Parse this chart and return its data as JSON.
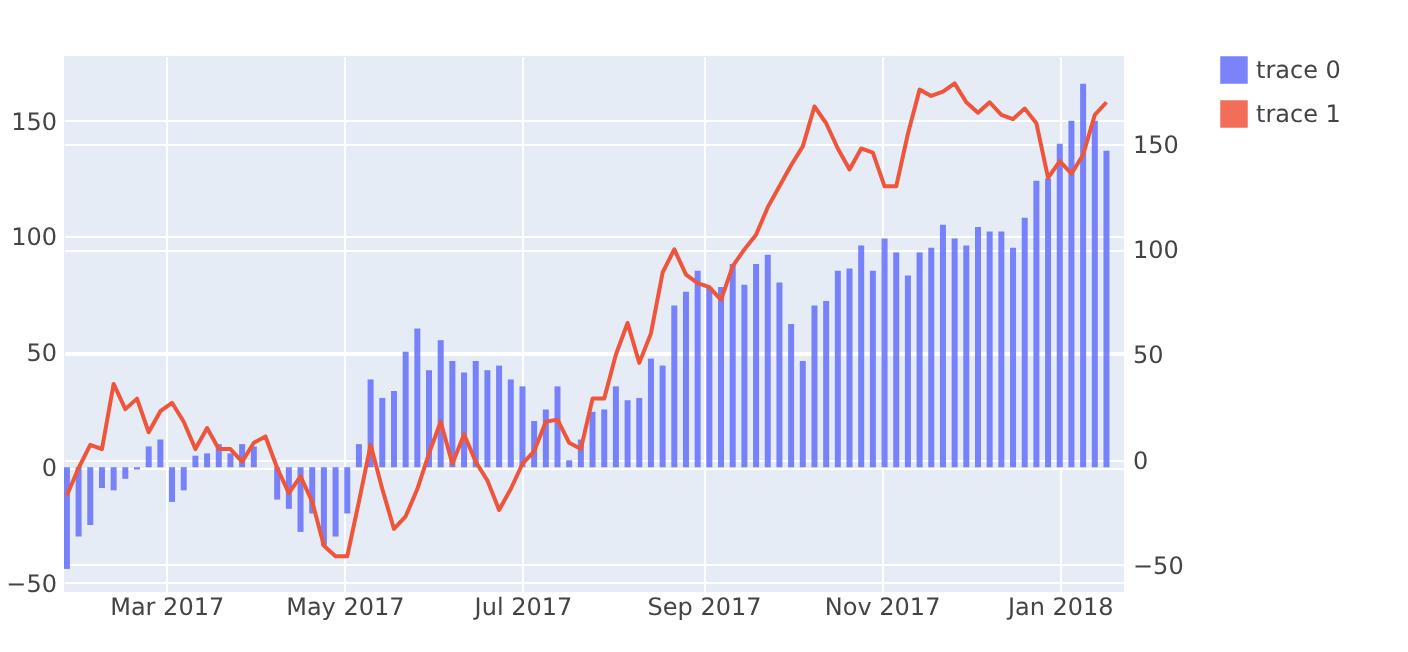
{
  "chart_data": {
    "type": "bar",
    "x": [
      "2017-01-26",
      "2017-01-30",
      "2017-02-03",
      "2017-02-07",
      "2017-02-11",
      "2017-02-15",
      "2017-02-19",
      "2017-02-23",
      "2017-02-27",
      "2017-03-03",
      "2017-03-07",
      "2017-03-11",
      "2017-03-15",
      "2017-03-19",
      "2017-03-23",
      "2017-03-27",
      "2017-03-31",
      "2017-04-04",
      "2017-04-08",
      "2017-04-12",
      "2017-04-16",
      "2017-04-20",
      "2017-04-24",
      "2017-04-28",
      "2017-05-02",
      "2017-05-06",
      "2017-05-10",
      "2017-05-14",
      "2017-05-18",
      "2017-05-22",
      "2017-05-26",
      "2017-05-30",
      "2017-06-03",
      "2017-06-07",
      "2017-06-11",
      "2017-06-15",
      "2017-06-19",
      "2017-06-23",
      "2017-06-27",
      "2017-07-01",
      "2017-07-05",
      "2017-07-09",
      "2017-07-13",
      "2017-07-17",
      "2017-07-21",
      "2017-07-25",
      "2017-07-29",
      "2017-08-02",
      "2017-08-06",
      "2017-08-10",
      "2017-08-14",
      "2017-08-18",
      "2017-08-22",
      "2017-08-26",
      "2017-08-30",
      "2017-09-03",
      "2017-09-07",
      "2017-09-11",
      "2017-09-15",
      "2017-09-19",
      "2017-09-23",
      "2017-09-27",
      "2017-10-01",
      "2017-10-05",
      "2017-10-09",
      "2017-10-13",
      "2017-10-17",
      "2017-10-21",
      "2017-10-25",
      "2017-10-29",
      "2017-11-02",
      "2017-11-06",
      "2017-11-10",
      "2017-11-14",
      "2017-11-18",
      "2017-11-22",
      "2017-11-26",
      "2017-11-30",
      "2017-12-04",
      "2017-12-08",
      "2017-12-12",
      "2017-12-16",
      "2017-12-20",
      "2017-12-24",
      "2017-12-28",
      "2018-01-01",
      "2018-01-05",
      "2018-01-09",
      "2018-01-13",
      "2018-01-17"
    ],
    "series": [
      {
        "name": "trace 0",
        "color": "#636efa",
        "values": [
          -44,
          -30,
          -25,
          -9,
          -10,
          -5,
          -1,
          9,
          12,
          -15,
          -10,
          5,
          6,
          10,
          6,
          10,
          9,
          0,
          -14,
          -18,
          -28,
          -20,
          -34,
          -30,
          -20,
          10,
          38,
          30,
          33,
          50,
          60,
          42,
          55,
          46,
          41,
          46,
          42,
          44,
          38,
          35,
          20,
          25,
          35,
          3,
          12,
          24,
          25,
          35,
          29,
          30,
          47,
          44,
          70,
          76,
          85,
          78,
          78,
          88,
          79,
          88,
          92,
          80,
          62,
          46,
          70,
          72,
          85,
          86,
          96,
          85,
          99,
          93,
          83,
          93,
          95,
          105,
          99,
          96,
          104,
          102,
          102,
          95,
          108,
          124,
          125,
          140,
          150,
          166,
          150,
          137
        ]
      },
      {
        "name": "trace 1",
        "type": "line",
        "axis": "y2",
        "color": "#ef553b",
        "values": [
          -17,
          -4,
          7,
          5,
          36,
          24,
          29,
          13,
          23,
          27,
          18,
          5,
          15,
          5,
          5,
          -1,
          8,
          11,
          -4,
          -16,
          -8,
          -20,
          -41,
          -46,
          -46,
          -20,
          7,
          -14,
          -33,
          -27,
          -14,
          3,
          18,
          -2,
          12,
          -1,
          -10,
          -24,
          -14,
          -2,
          4,
          18,
          19,
          8,
          5,
          29,
          29,
          50,
          65,
          46,
          60,
          89,
          100,
          88,
          84,
          82,
          76,
          92,
          100,
          107,
          120,
          130,
          140,
          149,
          168,
          160,
          148,
          138,
          148,
          146,
          130,
          130,
          155,
          176,
          173,
          175,
          179,
          170,
          165,
          170,
          164,
          162,
          167,
          160,
          134,
          142,
          136,
          145,
          164,
          170
        ]
      }
    ],
    "xlim": [
      "2017-01-25",
      "2018-01-23"
    ],
    "xticks": [
      {
        "value": "2017-03-01",
        "label": "Mar 2017"
      },
      {
        "value": "2017-05-01",
        "label": "May 2017"
      },
      {
        "value": "2017-07-01",
        "label": "Jul 2017"
      },
      {
        "value": "2017-09-01",
        "label": "Sep 2017"
      },
      {
        "value": "2017-11-01",
        "label": "Nov 2017"
      },
      {
        "value": "2018-01-01",
        "label": "Jan 2018"
      }
    ],
    "ylim": [
      -54,
      178
    ],
    "yticks": [
      -50,
      0,
      50,
      100,
      150
    ],
    "y2lim": [
      -63,
      192
    ],
    "y2ticks": [
      -50,
      0,
      50,
      100,
      150
    ],
    "grid": true,
    "legend": "top right"
  }
}
